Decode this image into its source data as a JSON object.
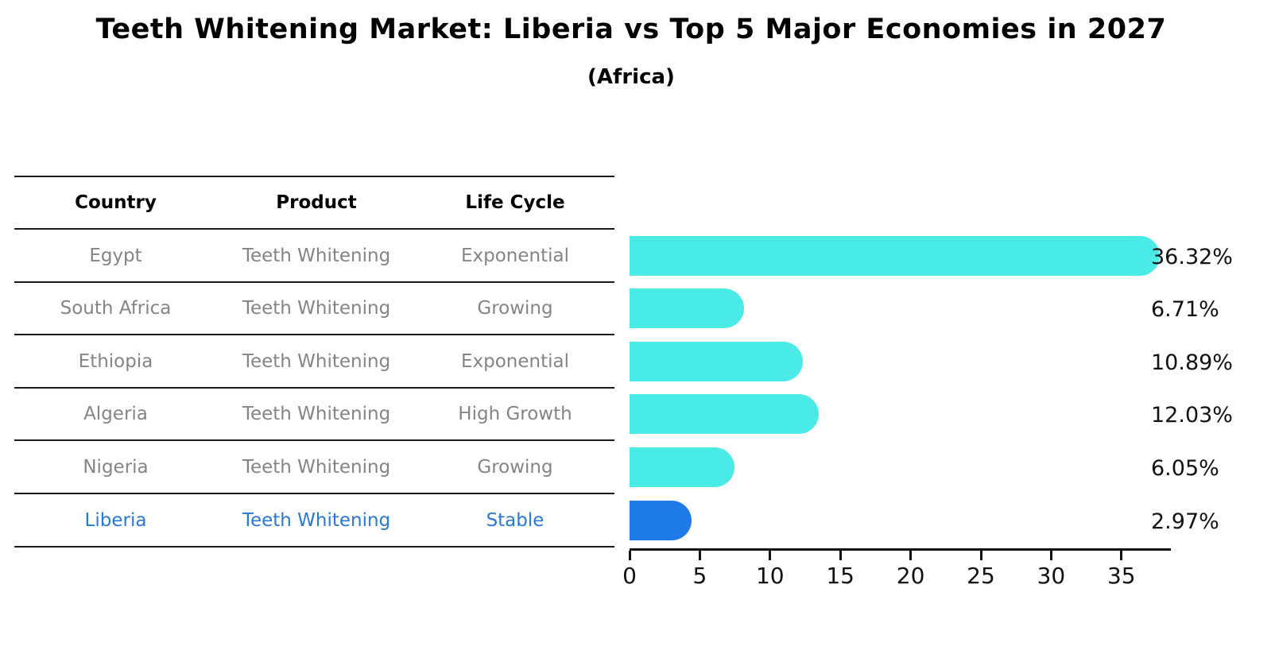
{
  "header": {
    "title": "Teeth Whitening Market: Liberia vs Top 5 Major Economies in 2027",
    "subtitle": "(Africa)"
  },
  "table": {
    "headers": [
      "Country",
      "Product",
      "Life Cycle"
    ],
    "rows": [
      {
        "country": "Egypt",
        "product": "Teeth Whitening",
        "life_cycle": "Exponential",
        "highlight": false
      },
      {
        "country": "South Africa",
        "product": "Teeth Whitening",
        "life_cycle": "Growing",
        "highlight": false
      },
      {
        "country": "Ethiopia",
        "product": "Teeth Whitening",
        "life_cycle": "Exponential",
        "highlight": false
      },
      {
        "country": "Algeria",
        "product": "Teeth Whitening",
        "life_cycle": "High Growth",
        "highlight": false
      },
      {
        "country": "Nigeria",
        "product": "Teeth Whitening",
        "life_cycle": "Growing",
        "highlight": false
      },
      {
        "country": "Liberia",
        "product": "Teeth Whitening",
        "life_cycle": "Stable",
        "highlight": true
      }
    ]
  },
  "chart_data": {
    "type": "bar",
    "orientation": "horizontal",
    "title": "Teeth Whitening Market: Liberia vs Top 5 Major Economies in 2027 (Africa)",
    "categories": [
      "Egypt",
      "South Africa",
      "Ethiopia",
      "Algeria",
      "Nigeria",
      "Liberia"
    ],
    "values": [
      36.32,
      6.71,
      10.89,
      12.03,
      6.05,
      2.97
    ],
    "value_labels": [
      "36.32%",
      "6.71%",
      "10.89%",
      "12.03%",
      "6.05%",
      "2.97%"
    ],
    "x_ticks": [
      0,
      5,
      10,
      15,
      20,
      25,
      30,
      35
    ],
    "xlim": [
      0,
      38.5
    ],
    "grid": false,
    "legend": false,
    "bar_color": "#4AEAE6",
    "highlight_color": "#1F7BE8",
    "highlight_index": 5,
    "highlight_category": "Liberia"
  },
  "colors": {
    "text_black": "#000000",
    "text_gray": "#848484",
    "text_blue": "#2878D6",
    "bar_cyan": "#4AEAE6",
    "bar_blue": "#1F7BE8"
  }
}
